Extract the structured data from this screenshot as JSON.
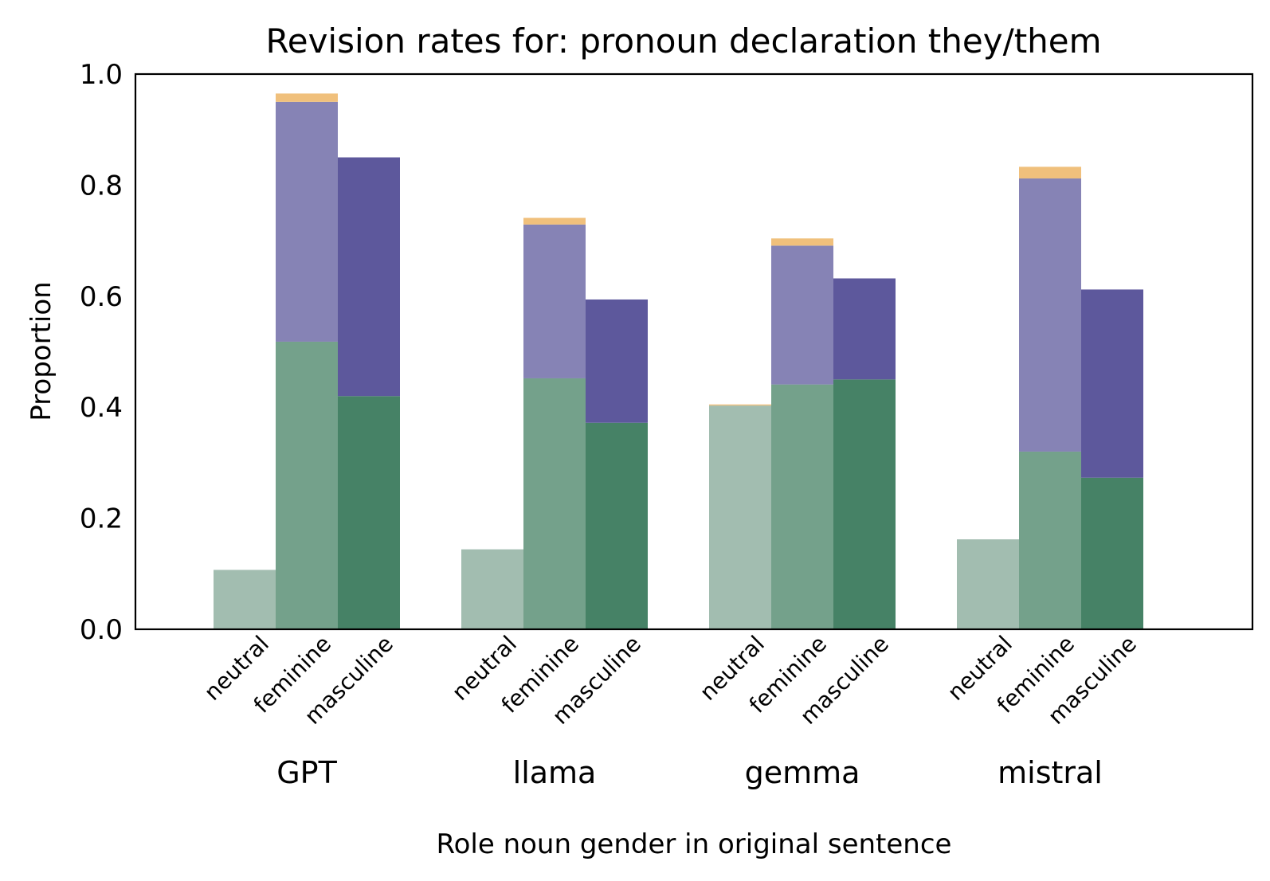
{
  "chart_data": {
    "type": "bar",
    "stacked": true,
    "title": "Revision rates for: pronoun declaration they/them",
    "xlabel": "Role noun gender in original sentence",
    "ylabel": "Proportion",
    "ylim": [
      0,
      1.0
    ],
    "yticks": [
      "0.0",
      "0.2",
      "0.4",
      "0.6",
      "0.8",
      "1.0"
    ],
    "groups": [
      "GPT",
      "llama",
      "gemma",
      "mistral"
    ],
    "categories": [
      "neutral",
      "feminine",
      "masculine"
    ],
    "layers": [
      "green",
      "purple",
      "orange"
    ],
    "values": [
      [
        [
          0.107,
          0,
          0
        ],
        [
          0.518,
          0.432,
          0.015
        ],
        [
          0.42,
          0.43,
          0
        ]
      ],
      [
        [
          0.144,
          0,
          0
        ],
        [
          0.452,
          0.277,
          0.012
        ],
        [
          0.372,
          0.222,
          0
        ]
      ],
      [
        [
          0.403,
          0,
          0.002
        ],
        [
          0.441,
          0.25,
          0.013
        ],
        [
          0.45,
          0.182,
          0
        ]
      ],
      [
        [
          0.162,
          0,
          0
        ],
        [
          0.32,
          0.492,
          0.021
        ],
        [
          0.273,
          0.339,
          0
        ]
      ]
    ],
    "colors": {
      "green": [
        "#a2bdb0",
        "#74a18b",
        "#468266"
      ],
      "purple": [
        "#a6a6cc",
        "#8683b5",
        "#5d589c"
      ],
      "orange": [
        "#f0c07c",
        "#f0c07c",
        "#f0c07c"
      ]
    },
    "grid": false,
    "legend": "none"
  }
}
